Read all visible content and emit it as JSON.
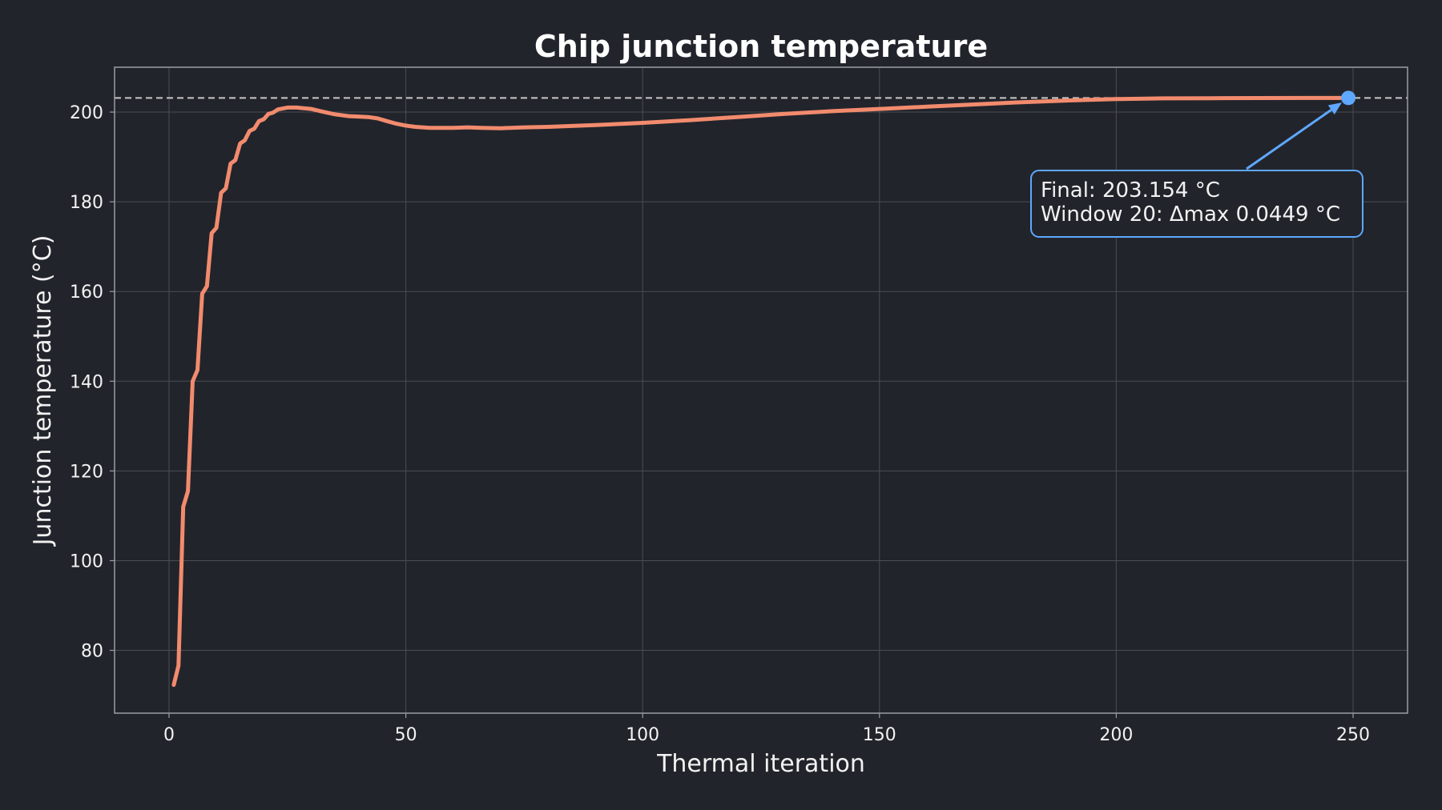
{
  "chart_data": {
    "type": "line",
    "title": "Chip junction temperature",
    "xlabel": "Thermal iteration",
    "ylabel": "Junction temperature (°C)",
    "xlim": [
      -11.5,
      261.5
    ],
    "ylim": [
      66,
      210
    ],
    "xticks": [
      0,
      50,
      100,
      150,
      200,
      250
    ],
    "yticks": [
      80,
      100,
      120,
      140,
      160,
      180,
      200
    ],
    "grid": true,
    "reference_line": {
      "y": 203.154,
      "style": "dashed",
      "color": "#c8c8c8"
    },
    "series": [
      {
        "color": "#f28b6e",
        "x": [
          1,
          2,
          3,
          4,
          5,
          6,
          7,
          8,
          9,
          10,
          11,
          12,
          13,
          14,
          15,
          16,
          17,
          18,
          19,
          20,
          21,
          22,
          23,
          24,
          25,
          26,
          27,
          28,
          30,
          32,
          35,
          38,
          40,
          42,
          44,
          46,
          48,
          50,
          52,
          55,
          58,
          60,
          63,
          66,
          70,
          75,
          80,
          90,
          100,
          110,
          120,
          130,
          140,
          150,
          160,
          170,
          180,
          190,
          200,
          210,
          220,
          230,
          240,
          249
        ],
        "y": [
          72.3,
          76.6,
          112,
          115.5,
          140,
          142.5,
          159.5,
          161.2,
          173,
          174.2,
          182,
          183,
          188.5,
          189.3,
          193,
          193.7,
          195.8,
          196.3,
          198,
          198.4,
          199.6,
          199.9,
          200.6,
          200.8,
          201.0,
          201.0,
          201.0,
          200.9,
          200.7,
          200.2,
          199.5,
          199.1,
          199.0,
          198.9,
          198.6,
          198.0,
          197.4,
          197.0,
          196.7,
          196.5,
          196.5,
          196.5,
          196.6,
          196.5,
          196.4,
          196.6,
          196.7,
          197.1,
          197.6,
          198.2,
          198.9,
          199.6,
          200.2,
          200.7,
          201.2,
          201.7,
          202.2,
          202.6,
          202.9,
          203.05,
          203.1,
          203.13,
          203.15,
          203.154
        ]
      }
    ],
    "final_point": {
      "x": 249,
      "y": 203.154,
      "color": "#5ea8ff"
    },
    "annotation": {
      "lines": [
        "Final: 203.154 °C",
        "Window 20: Δmax 0.0449 °C"
      ],
      "border_color": "#5ea8ff"
    },
    "colors": {
      "background": "#22242b",
      "grid": "#4a4d55",
      "frame": "#9a9da4",
      "text": "#f2f2f2"
    }
  }
}
